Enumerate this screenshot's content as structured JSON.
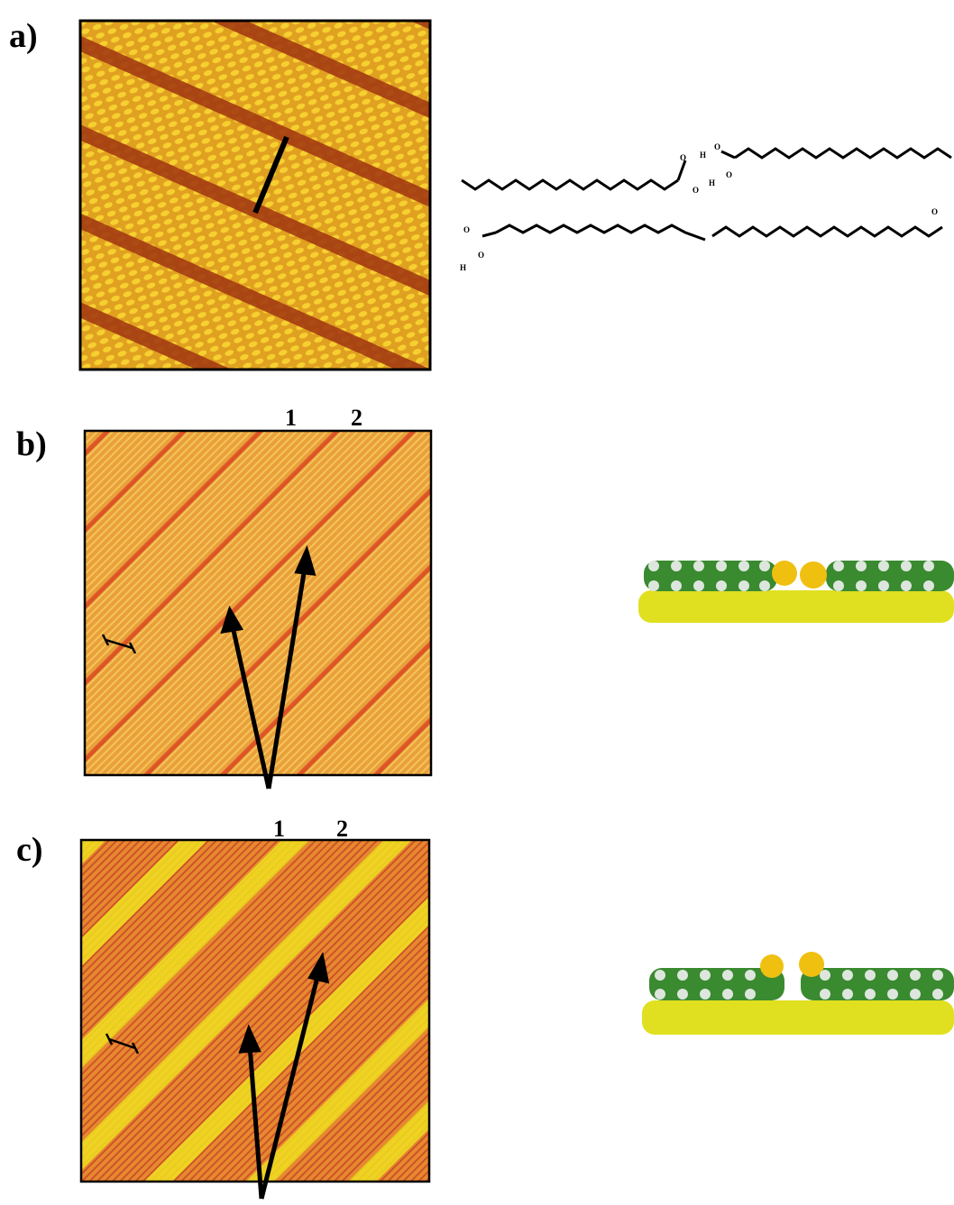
{
  "panels": [
    {
      "label": "a)",
      "atoms": [
        "O",
        "H",
        "O",
        "O",
        "H",
        "O",
        "O",
        "O",
        "O",
        "H"
      ]
    },
    {
      "label": "b)",
      "markers": [
        "1",
        "2"
      ]
    },
    {
      "label": "c)",
      "markers": [
        "1",
        "2"
      ]
    }
  ]
}
